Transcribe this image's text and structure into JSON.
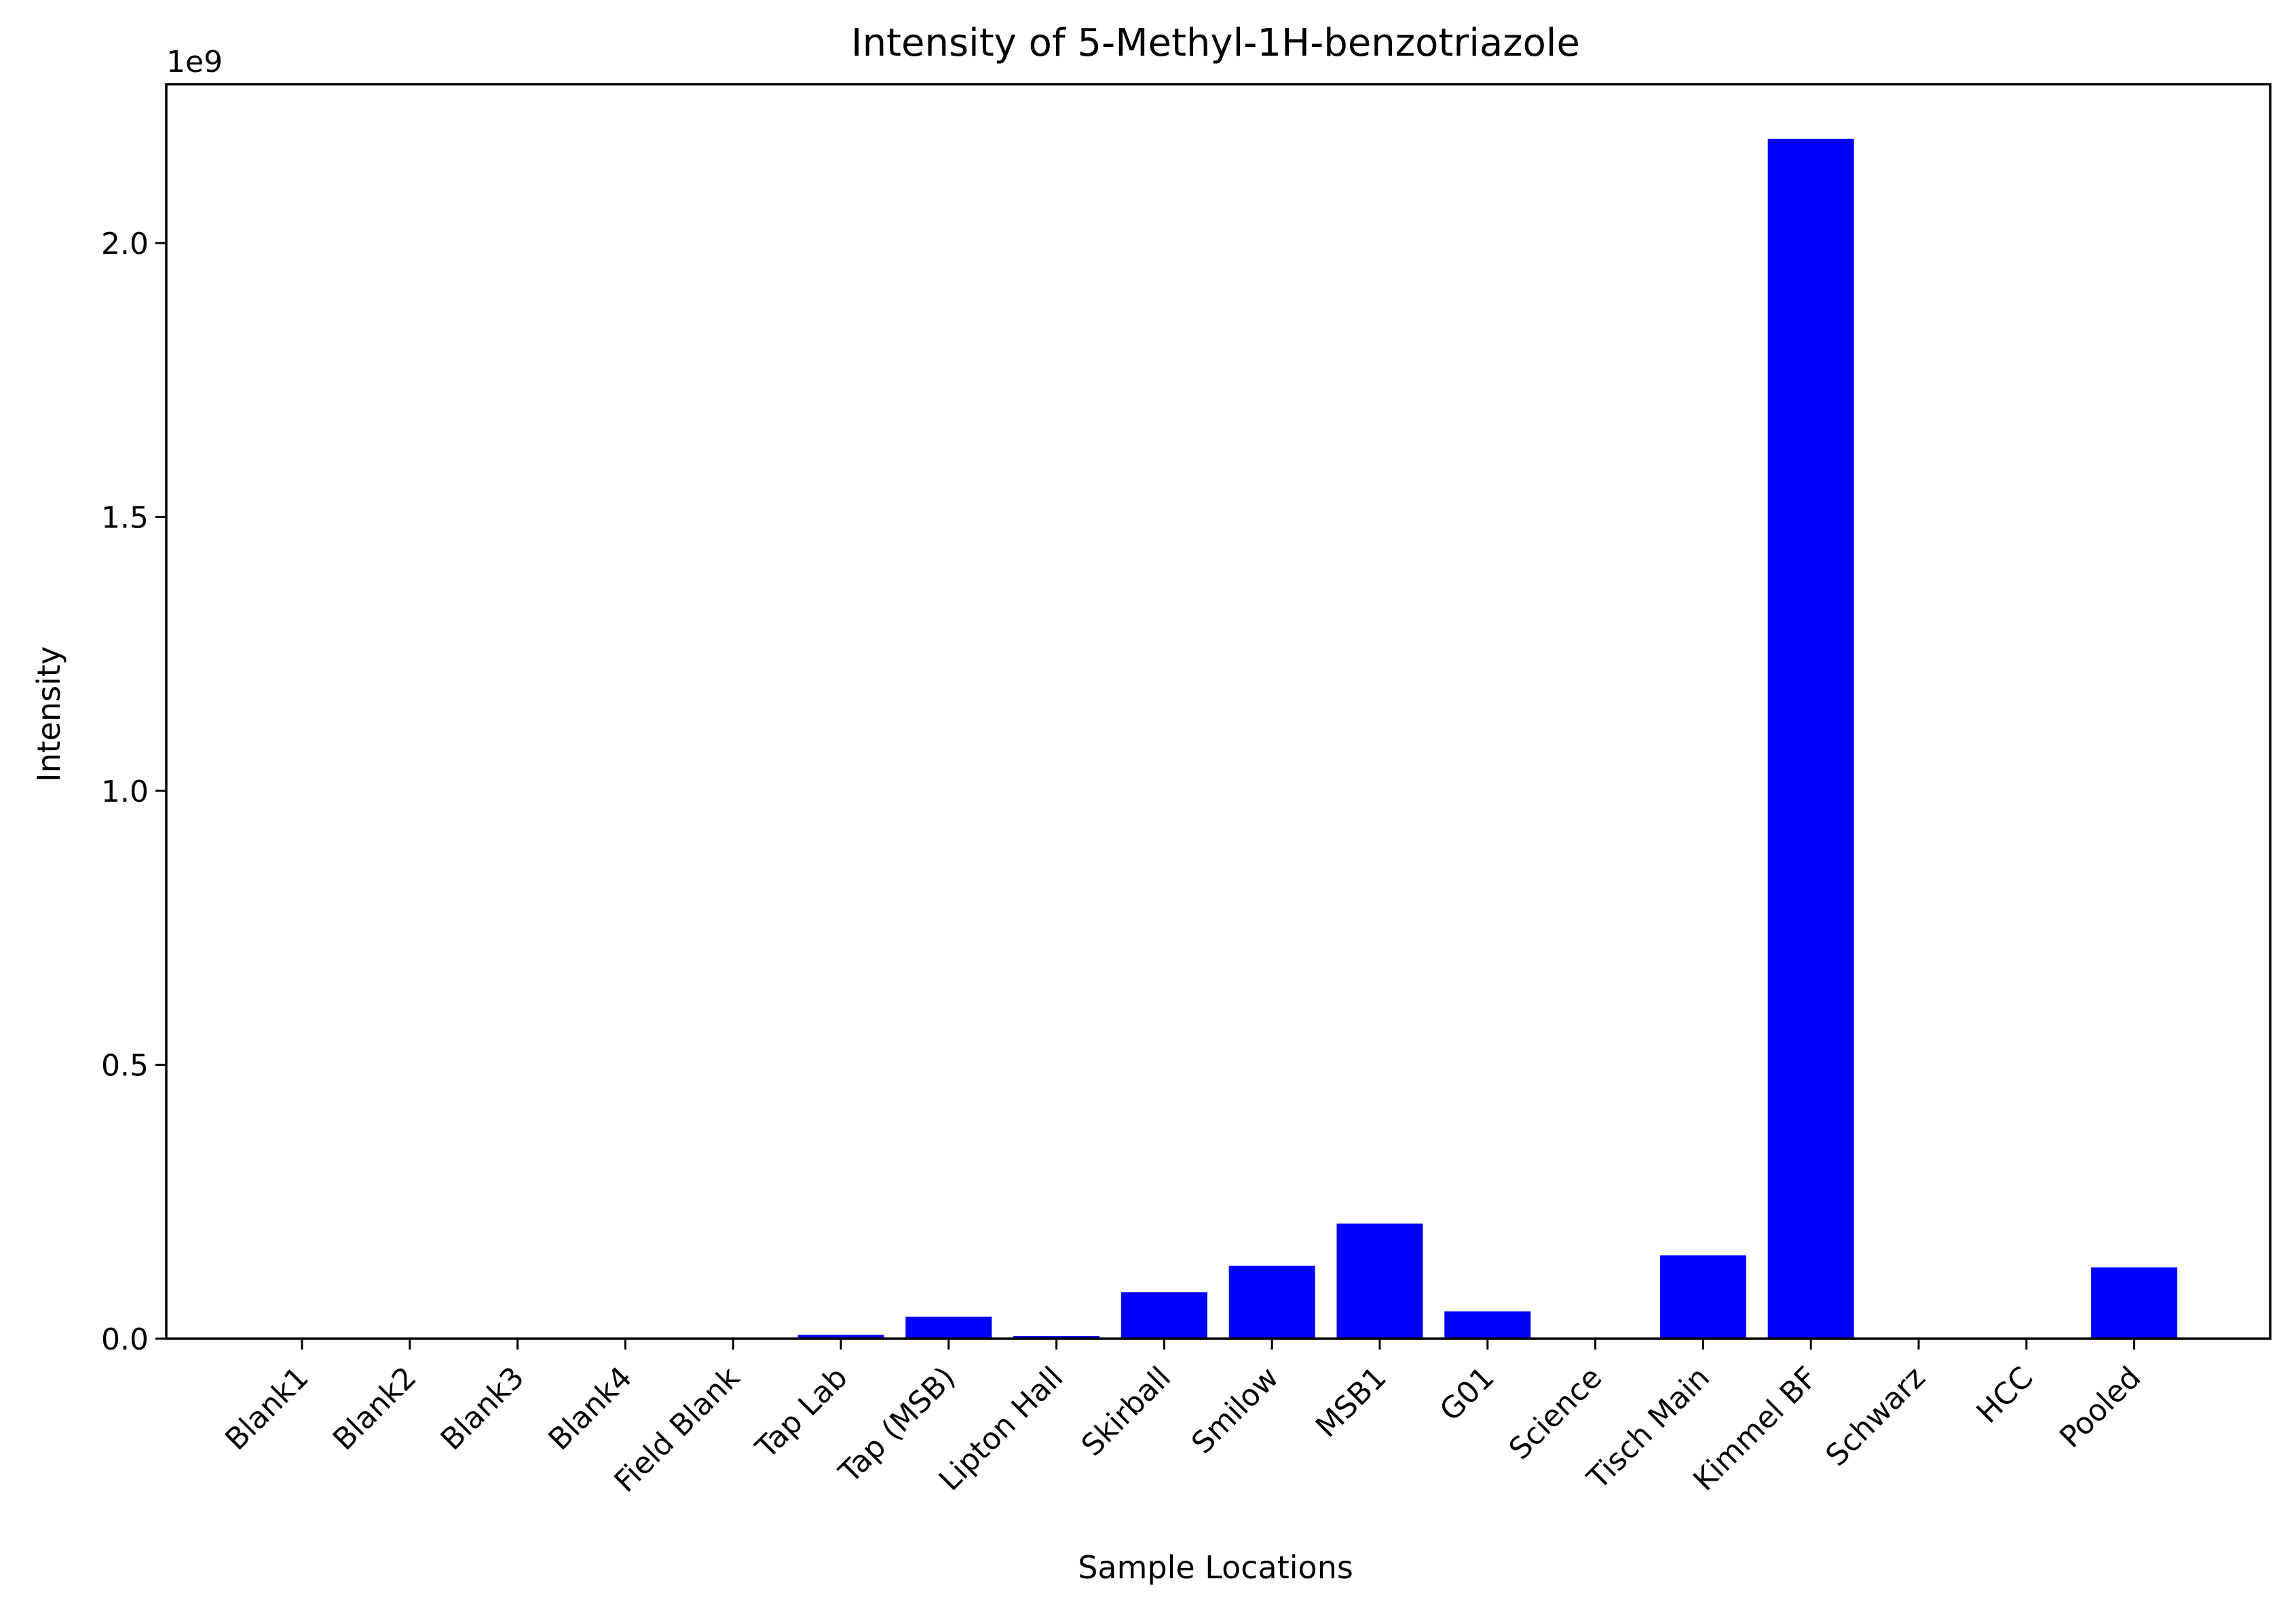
{
  "chart_data": {
    "type": "bar",
    "title": "Intensity of 5-Methyl-1H-benzotriazole",
    "xlabel": "Sample Locations",
    "ylabel": "Intensity",
    "y_offset_label": "1e9",
    "y_scale_multiplier": 1000000000,
    "ylim": [
      0,
      2.29
    ],
    "yticks": [
      0.0,
      0.5,
      1.0,
      1.5,
      2.0
    ],
    "ytick_labels": [
      "0.0",
      "0.5",
      "1.0",
      "1.5",
      "2.0"
    ],
    "grid": false,
    "legend": "none",
    "bar_color": "#0000ff",
    "categories": [
      "Blank1",
      "Blank2",
      "Blank3",
      "Blank4",
      "Field Blank",
      "Tap Lab",
      "Tap (MSB)",
      "Lipton Hall",
      "Skirball",
      "Smilow",
      "MSB1",
      "G01",
      "Science",
      "Tisch Main",
      "Kimmel BF",
      "Schwarz",
      "HCC",
      "Pooled"
    ],
    "values": [
      0,
      0,
      0,
      0,
      0,
      0.007,
      0.04,
      0.005,
      0.085,
      0.133,
      0.21,
      0.05,
      0,
      0.152,
      2.19,
      0,
      0,
      0.13
    ]
  }
}
